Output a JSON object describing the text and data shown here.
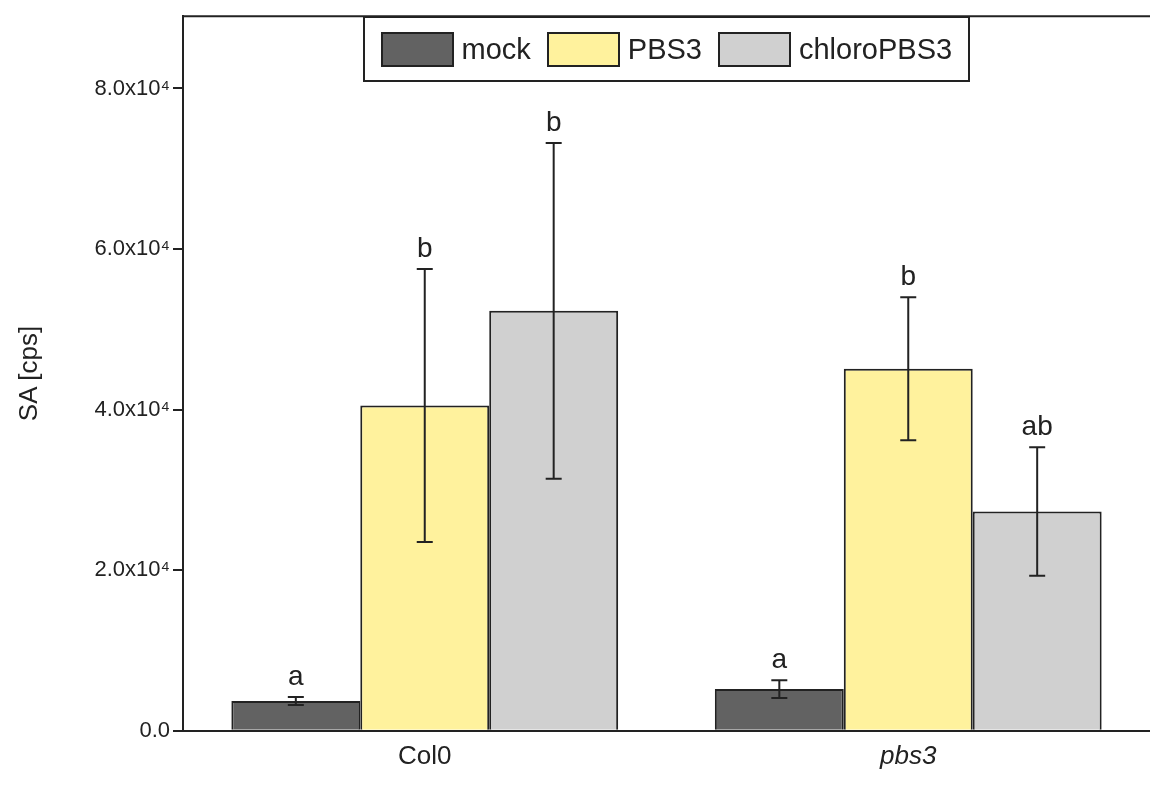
{
  "chart_data": {
    "type": "bar",
    "ylabel": "SA [cps]",
    "categories": [
      "Col0",
      "pbs3"
    ],
    "series": [
      {
        "name": "mock",
        "color": "#626262",
        "values": [
          3700,
          5200
        ],
        "errors": [
          500,
          1100
        ]
      },
      {
        "name": "PBS3",
        "color": "#fff29d",
        "values": [
          40500,
          45100
        ],
        "errors": [
          17000,
          8900
        ]
      },
      {
        "name": "chloroPBS3",
        "color": "#d0d0d0",
        "values": [
          52300,
          27300
        ],
        "errors": [
          20900,
          8000
        ]
      }
    ],
    "ylim": [
      0,
      89000
    ],
    "yticks": [
      {
        "value": 0,
        "label": "0.0"
      },
      {
        "value": 20000,
        "label": "2.0x10⁴"
      },
      {
        "value": 40000,
        "label": "4.0x10⁴"
      },
      {
        "value": 60000,
        "label": "6.0x10⁴"
      },
      {
        "value": 80000,
        "label": "8.0x10⁴"
      }
    ],
    "grid": false,
    "legend": "top",
    "annotations": [
      "a",
      "b",
      "b",
      "a",
      "b",
      "ab"
    ]
  }
}
